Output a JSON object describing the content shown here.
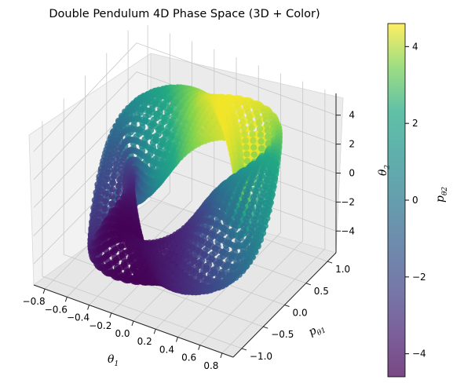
{
  "chart_data": {
    "type": "scatter3d",
    "title": "Double Pendulum 4D Phase Space (3D + Color)",
    "x_axis": {
      "label": "θ",
      "label_sub": "1",
      "range": [
        -0.9,
        0.9
      ],
      "ticks": [
        "−0.8",
        "−0.6",
        "−0.4",
        "−0.2",
        "0.0",
        "0.2",
        "0.4",
        "0.6",
        "0.8"
      ]
    },
    "y_axis": {
      "label": "p",
      "label_sub": "θ1",
      "range": [
        -1.2,
        1.2
      ],
      "ticks": [
        "−1.0",
        "−0.5",
        "0.0",
        "0.5",
        "1.0"
      ]
    },
    "z_axis": {
      "label": "θ",
      "label_sub": "2",
      "range": [
        -5.5,
        5.5
      ],
      "ticks": [
        "−4",
        "−2",
        "0",
        "2",
        "4"
      ]
    },
    "colorbar": {
      "label": "p",
      "label_sub": "θ2",
      "range": [
        -4.6,
        4.6
      ],
      "ticks": [
        "−4",
        "−2",
        "0",
        "2",
        "4"
      ],
      "colormap": "viridis"
    },
    "trajectory": {
      "theta1_amplitude": 0.75,
      "p_theta1_amplitude": 1.05,
      "theta2_amplitude": 4.8,
      "p_theta2_amplitude": 4.5
    },
    "grid": true
  }
}
